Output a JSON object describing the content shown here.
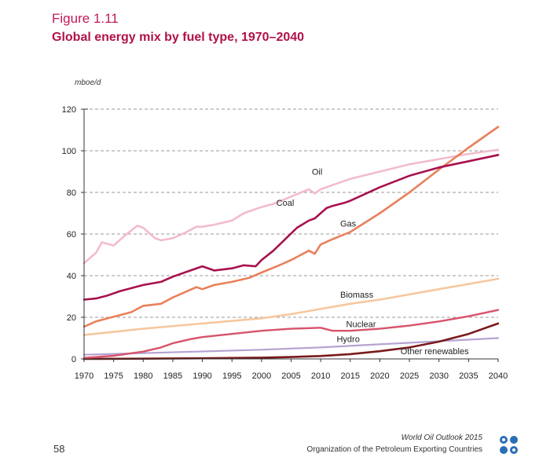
{
  "figure": {
    "label": "Figure 1.11",
    "title": "Global energy mix by fuel type, 1970–2040"
  },
  "footer": {
    "page_number": "58",
    "publication": "World Oil Outlook 2015",
    "organization": "Organization of the Petroleum Exporting Countries"
  },
  "chart_data": {
    "type": "line",
    "title": "Global energy mix by fuel type, 1970–2040",
    "ylabel": "mboe/d",
    "xlabel": "",
    "xlim": [
      1970,
      2040
    ],
    "ylim": [
      0,
      120
    ],
    "xticks": [
      1970,
      1975,
      1980,
      1985,
      1990,
      1995,
      2000,
      2005,
      2010,
      2015,
      2020,
      2025,
      2030,
      2035,
      2040
    ],
    "yticks": [
      0,
      20,
      40,
      60,
      80,
      100,
      120
    ],
    "grid": "horizontal dashed",
    "series": [
      {
        "name": "Oil",
        "color": "#f2bccb",
        "x": [
          1970,
          1972,
          1973,
          1975,
          1977,
          1979,
          1980,
          1982,
          1983,
          1985,
          1987,
          1989,
          1990,
          1992,
          1995,
          1997,
          2000,
          2002,
          2005,
          2008,
          2009,
          2010,
          2012,
          2015,
          2020,
          2025,
          2030,
          2035,
          2040
        ],
        "y": [
          46,
          51,
          56,
          54.5,
          59.5,
          64,
          63,
          58,
          57,
          58,
          60.5,
          63.5,
          63.5,
          64.5,
          66.5,
          70,
          73,
          74.5,
          78,
          81.5,
          79.5,
          81.5,
          83.5,
          86.5,
          90,
          93.5,
          96,
          98.5,
          100.5
        ]
      },
      {
        "name": "Coal",
        "color": "#a8114e",
        "x": [
          1970,
          1972,
          1974,
          1976,
          1978,
          1980,
          1983,
          1985,
          1988,
          1990,
          1992,
          1995,
          1997,
          1999,
          2000,
          2002,
          2004,
          2006,
          2008,
          2009,
          2010,
          2011,
          2012,
          2014,
          2015,
          2020,
          2025,
          2030,
          2035,
          2040
        ],
        "y": [
          28.5,
          29,
          30.5,
          32.5,
          34,
          35.5,
          37,
          39.5,
          42.5,
          44.5,
          42.5,
          43.5,
          45,
          44.5,
          47.5,
          52,
          57.5,
          63,
          66.5,
          67.5,
          70,
          72.5,
          73.5,
          75,
          76,
          82.5,
          88,
          92,
          95,
          98
        ]
      },
      {
        "name": "Gas",
        "color": "#e8805c",
        "x": [
          1970,
          1972,
          1974,
          1976,
          1978,
          1980,
          1983,
          1985,
          1987,
          1989,
          1990,
          1992,
          1995,
          1998,
          2000,
          2003,
          2005,
          2008,
          2009,
          2010,
          2012,
          2015,
          2020,
          2025,
          2030,
          2035,
          2040
        ],
        "y": [
          15.5,
          18,
          19.5,
          21,
          22.5,
          25.5,
          26.5,
          29.5,
          32,
          34.5,
          33.5,
          35.5,
          37,
          39,
          41.5,
          45,
          47.5,
          52,
          50.5,
          55,
          57.5,
          61,
          70,
          80,
          91,
          101.5,
          111.5
        ]
      },
      {
        "name": "Biomass",
        "color": "#f6c79e",
        "x": [
          1970,
          1980,
          1990,
          2000,
          2005,
          2010,
          2015,
          2020,
          2025,
          2030,
          2035,
          2040
        ],
        "y": [
          11.5,
          14.5,
          17,
          19.5,
          21.5,
          24,
          26.5,
          28.5,
          31,
          33.5,
          36,
          38.5
        ]
      },
      {
        "name": "Nuclear",
        "color": "#d8536b",
        "x": [
          1970,
          1975,
          1980,
          1983,
          1985,
          1988,
          1990,
          1995,
          2000,
          2005,
          2010,
          2012,
          2015,
          2020,
          2025,
          2030,
          2035,
          2040
        ],
        "y": [
          0.5,
          1.5,
          3.5,
          5.5,
          7.5,
          9.5,
          10.5,
          12,
          13.5,
          14.5,
          15,
          13.5,
          13.5,
          14.5,
          16,
          18,
          20.5,
          23.5
        ]
      },
      {
        "name": "Hydro",
        "color": "#b6a3d2",
        "x": [
          1970,
          1980,
          1990,
          2000,
          2010,
          2020,
          2030,
          2040
        ],
        "y": [
          2,
          2.8,
          3.6,
          4.4,
          5.5,
          7,
          8.5,
          10
        ]
      },
      {
        "name": "Other renewables",
        "color": "#7a1a1a",
        "x": [
          1970,
          1980,
          1990,
          2000,
          2005,
          2010,
          2015,
          2020,
          2025,
          2030,
          2035,
          2040
        ],
        "y": [
          0,
          0.1,
          0.3,
          0.6,
          0.9,
          1.4,
          2.3,
          3.7,
          5.5,
          8.3,
          12,
          17
        ]
      }
    ]
  }
}
